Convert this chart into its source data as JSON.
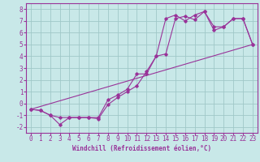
{
  "xlabel": "Windchill (Refroidissement éolien,°C)",
  "bg_color": "#c8e8e8",
  "grid_color": "#a0c8c8",
  "line_color": "#993399",
  "xlim": [
    -0.5,
    23.5
  ],
  "ylim": [
    -2.5,
    8.5
  ],
  "xticks": [
    0,
    1,
    2,
    3,
    4,
    5,
    6,
    7,
    8,
    9,
    10,
    11,
    12,
    13,
    14,
    15,
    16,
    17,
    18,
    19,
    20,
    21,
    22,
    23
  ],
  "yticks": [
    -2,
    -1,
    0,
    1,
    2,
    3,
    4,
    5,
    6,
    7,
    8
  ],
  "line1_x": [
    0,
    1,
    2,
    3,
    4,
    5,
    6,
    7,
    8,
    9,
    10,
    11,
    12,
    13,
    14,
    15,
    16,
    17,
    18,
    19,
    20,
    21,
    22,
    23
  ],
  "line1_y": [
    -0.5,
    -0.6,
    -1.0,
    -1.8,
    -1.2,
    -1.2,
    -1.2,
    -1.3,
    -0.1,
    0.5,
    1.0,
    1.5,
    2.7,
    4.0,
    4.2,
    7.2,
    7.4,
    7.1,
    7.8,
    6.2,
    6.5,
    7.2,
    7.2,
    5.0
  ],
  "line2_x": [
    0,
    1,
    2,
    3,
    4,
    5,
    6,
    7,
    8,
    9,
    10,
    11,
    12,
    13,
    14,
    15,
    16,
    17,
    18,
    19,
    20,
    21,
    22,
    23
  ],
  "line2_y": [
    -0.5,
    -0.6,
    -1.0,
    -1.2,
    -1.2,
    -1.2,
    -1.2,
    -1.2,
    0.3,
    0.7,
    1.2,
    2.5,
    2.5,
    4.0,
    7.2,
    7.5,
    7.0,
    7.5,
    7.8,
    6.5,
    6.5,
    7.2,
    7.2,
    5.0
  ],
  "line3_x": [
    0,
    23
  ],
  "line3_y": [
    -0.5,
    5.0
  ],
  "tick_fontsize": 5.5,
  "xlabel_fontsize": 5.5
}
